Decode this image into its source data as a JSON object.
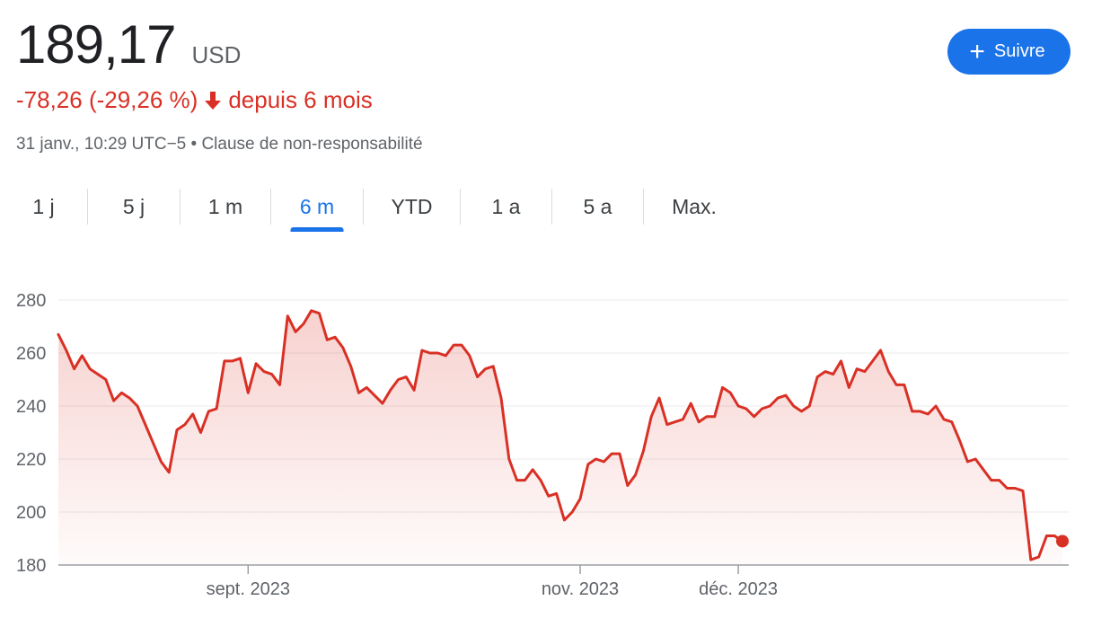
{
  "quote": {
    "price": "189,17",
    "currency": "USD",
    "change": "-78,26 (-29,26 %)",
    "period": "depuis 6 mois",
    "timestamp": "31 janv., 10:29 UTC−5",
    "separator": "•",
    "disclaimer": "Clause de non-responsabilité",
    "trend_color": "#d93025"
  },
  "follow_button": {
    "icon": "plus-icon",
    "label": "Suivre",
    "color": "#1a73e8"
  },
  "tabs": [
    {
      "label": "1 j",
      "active": false
    },
    {
      "label": "5 j",
      "active": false
    },
    {
      "label": "1 m",
      "active": false
    },
    {
      "label": "6 m",
      "active": true
    },
    {
      "label": "YTD",
      "active": false
    },
    {
      "label": "1 a",
      "active": false
    },
    {
      "label": "5 a",
      "active": false
    },
    {
      "label": "Max.",
      "active": false
    }
  ],
  "chart_data": {
    "type": "area",
    "title": "",
    "xlabel": "",
    "ylabel": "",
    "ylim": [
      180,
      280
    ],
    "yticks": [
      180,
      200,
      220,
      240,
      260,
      280
    ],
    "grid": true,
    "line_color": "#d93025",
    "x_ticks": [
      {
        "label": "sept. 2023",
        "index": 24
      },
      {
        "label": "nov. 2023",
        "index": 66
      },
      {
        "label": "déc. 2023",
        "index": 86
      }
    ],
    "series": [
      {
        "values": [
          267,
          261,
          254,
          259,
          254,
          252,
          250,
          242,
          245,
          243,
          240,
          233,
          226,
          219,
          215,
          231,
          233,
          237,
          230,
          238,
          239,
          257,
          257,
          258,
          245,
          256,
          253,
          252,
          248,
          274,
          268,
          271,
          276,
          275,
          265,
          266,
          262,
          255,
          245,
          247,
          244,
          241,
          246,
          250,
          251,
          246,
          261,
          260,
          260,
          259,
          263,
          263,
          259,
          251,
          254,
          255,
          243,
          220,
          212,
          212,
          216,
          212,
          206,
          207,
          197,
          200,
          205,
          218,
          220,
          219,
          222,
          222,
          210,
          214,
          223,
          236,
          243,
          233,
          234,
          235,
          241,
          234,
          236,
          236,
          247,
          245,
          240,
          239,
          236,
          239,
          240,
          243,
          244,
          240,
          238,
          240,
          251,
          253,
          252,
          257,
          247,
          254,
          253,
          257,
          261,
          253,
          248,
          248,
          238,
          238,
          237,
          240,
          235,
          234,
          227,
          219,
          220,
          216,
          212,
          212,
          209,
          209,
          208,
          182,
          183,
          191,
          191,
          189
        ]
      }
    ]
  }
}
